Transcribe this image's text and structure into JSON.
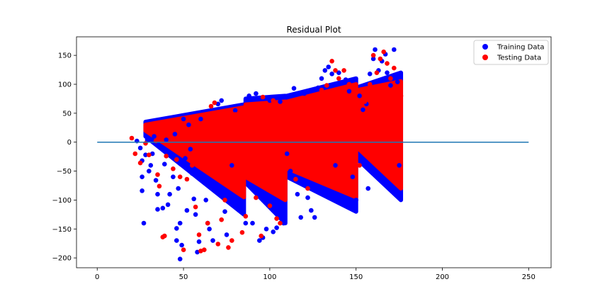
{
  "chart_data": {
    "type": "scatter",
    "title": "Residual Plot",
    "xlabel": "",
    "ylabel": "",
    "xlim": [
      -12,
      263
    ],
    "ylim": [
      -217,
      182
    ],
    "x_ticks": [
      0,
      50,
      100,
      150,
      200,
      250
    ],
    "y_ticks": [
      -200,
      -150,
      -100,
      -50,
      0,
      50,
      100,
      150
    ],
    "grid": false,
    "legend_position": "top-right",
    "reference_line": {
      "y": 0,
      "x_start": 0,
      "x_end": 250,
      "color": "#1f77b4"
    },
    "series": [
      {
        "name": "Training Data",
        "color": "#0000ff",
        "points": [
          [
            23,
            2
          ],
          [
            25,
            -10
          ],
          [
            26,
            -32
          ],
          [
            26,
            -60
          ],
          [
            26,
            -84
          ],
          [
            27,
            -140
          ],
          [
            28,
            -22
          ],
          [
            29,
            4
          ],
          [
            30,
            -50
          ],
          [
            31,
            -40
          ],
          [
            32,
            -20
          ],
          [
            33,
            10
          ],
          [
            34,
            -66
          ],
          [
            35,
            -90
          ],
          [
            35,
            -116
          ],
          [
            36,
            -8
          ],
          [
            38,
            -114
          ],
          [
            39,
            -38
          ],
          [
            40,
            4
          ],
          [
            41,
            -108
          ],
          [
            42,
            -90
          ],
          [
            43,
            -20
          ],
          [
            44,
            -60
          ],
          [
            45,
            14
          ],
          [
            46,
            -149
          ],
          [
            46,
            -170
          ],
          [
            47,
            -80
          ],
          [
            48,
            -140
          ],
          [
            48,
            -202
          ],
          [
            49,
            -178
          ],
          [
            50,
            40
          ],
          [
            51,
            -28
          ],
          [
            52,
            -118
          ],
          [
            53,
            30
          ],
          [
            54,
            -12
          ],
          [
            55,
            -54
          ],
          [
            56,
            -98
          ],
          [
            57,
            -125
          ],
          [
            58,
            -190
          ],
          [
            59,
            -172
          ],
          [
            60,
            40
          ],
          [
            62,
            -60
          ],
          [
            63,
            -100
          ],
          [
            64,
            -140
          ],
          [
            65,
            -150
          ],
          [
            67,
            -170
          ],
          [
            70,
            66
          ],
          [
            72,
            72
          ],
          [
            74,
            -120
          ],
          [
            75,
            -160
          ],
          [
            78,
            -40
          ],
          [
            80,
            55
          ],
          [
            82,
            -110
          ],
          [
            86,
            -140
          ],
          [
            88,
            80
          ],
          [
            90,
            -140
          ],
          [
            92,
            84
          ],
          [
            94,
            -170
          ],
          [
            96,
            -165
          ],
          [
            98,
            -150
          ],
          [
            100,
            72
          ],
          [
            102,
            -155
          ],
          [
            104,
            -148
          ],
          [
            106,
            70
          ],
          [
            108,
            -140
          ],
          [
            110,
            -20
          ],
          [
            112,
            -50
          ],
          [
            114,
            93
          ],
          [
            116,
            -90
          ],
          [
            118,
            -130
          ],
          [
            120,
            84
          ],
          [
            122,
            -96
          ],
          [
            124,
            -118
          ],
          [
            126,
            -130
          ],
          [
            128,
            94
          ],
          [
            130,
            110
          ],
          [
            132,
            124
          ],
          [
            134,
            130
          ],
          [
            136,
            118
          ],
          [
            138,
            -40
          ],
          [
            140,
            120
          ],
          [
            142,
            -100
          ],
          [
            144,
            108
          ],
          [
            146,
            88
          ],
          [
            148,
            -60
          ],
          [
            150,
            -100
          ],
          [
            152,
            80
          ],
          [
            154,
            56
          ],
          [
            156,
            66
          ],
          [
            157,
            -80
          ],
          [
            158,
            118
          ],
          [
            160,
            144
          ],
          [
            161,
            160
          ],
          [
            163,
            124
          ],
          [
            165,
            140
          ],
          [
            167,
            152
          ],
          [
            168,
            120
          ],
          [
            170,
            98
          ],
          [
            172,
            160
          ],
          [
            174,
            104
          ],
          [
            175,
            -40
          ]
        ]
      },
      {
        "name": "Testing Data",
        "color": "#ff0000",
        "points": [
          [
            20,
            7
          ],
          [
            22,
            -20
          ],
          [
            25,
            -36
          ],
          [
            28,
            -2
          ],
          [
            30,
            -22
          ],
          [
            34,
            2
          ],
          [
            35,
            -56
          ],
          [
            36,
            -76
          ],
          [
            38,
            -164
          ],
          [
            39,
            -162
          ],
          [
            40,
            -24
          ],
          [
            44,
            -46
          ],
          [
            46,
            -30
          ],
          [
            48,
            -60
          ],
          [
            50,
            -186
          ],
          [
            52,
            -64
          ],
          [
            55,
            -40
          ],
          [
            57,
            -112
          ],
          [
            59,
            -160
          ],
          [
            60,
            -188
          ],
          [
            62,
            -186
          ],
          [
            64,
            -140
          ],
          [
            66,
            62
          ],
          [
            67,
            32
          ],
          [
            68,
            68
          ],
          [
            70,
            -176
          ],
          [
            72,
            -134
          ],
          [
            74,
            -100
          ],
          [
            76,
            -182
          ],
          [
            78,
            -170
          ],
          [
            80,
            48
          ],
          [
            84,
            -156
          ],
          [
            86,
            -128
          ],
          [
            90,
            -40
          ],
          [
            92,
            -96
          ],
          [
            95,
            -162
          ],
          [
            96,
            78
          ],
          [
            98,
            66
          ],
          [
            100,
            -110
          ],
          [
            102,
            72
          ],
          [
            104,
            -132
          ],
          [
            106,
            -140
          ],
          [
            108,
            -70
          ],
          [
            112,
            50
          ],
          [
            115,
            -64
          ],
          [
            118,
            24
          ],
          [
            120,
            -40
          ],
          [
            122,
            -80
          ],
          [
            125,
            76
          ],
          [
            128,
            40
          ],
          [
            130,
            90
          ],
          [
            133,
            98
          ],
          [
            136,
            140
          ],
          [
            138,
            124
          ],
          [
            140,
            110
          ],
          [
            143,
            124
          ],
          [
            146,
            100
          ],
          [
            150,
            26
          ],
          [
            152,
            -40
          ],
          [
            155,
            70
          ],
          [
            158,
            100
          ],
          [
            160,
            150
          ],
          [
            162,
            120
          ],
          [
            164,
            144
          ],
          [
            166,
            156
          ],
          [
            168,
            136
          ],
          [
            170,
            110
          ],
          [
            172,
            128
          ],
          [
            174,
            95
          ],
          [
            176,
            80
          ]
        ],
        "dense_bands": [
          {
            "x_start": 28,
            "x_end": 85,
            "top_at_start": 30,
            "top_at_end": 60,
            "bottom_at_start": 20,
            "bottom_at_end": -95
          },
          {
            "x_start": 86,
            "x_end": 109,
            "top_at_start": 65,
            "top_at_end": 70,
            "bottom_at_start": -60,
            "bottom_at_end": -100
          },
          {
            "x_start": 110,
            "x_end": 150,
            "top_at_start": 70,
            "top_at_end": 100,
            "bottom_at_start": -45,
            "bottom_at_end": -95
          },
          {
            "x_start": 151,
            "x_end": 176,
            "top_at_start": 90,
            "top_at_end": 105,
            "bottom_at_start": -10,
            "bottom_at_end": -80
          }
        ]
      }
    ],
    "training_dense_bands": [
      {
        "x_start": 28,
        "x_end": 85,
        "top_at_start": 35,
        "top_at_end": 65,
        "bottom_at_start": 10,
        "bottom_at_end": -125
      },
      {
        "x_start": 86,
        "x_end": 109,
        "top_at_start": 75,
        "top_at_end": 80,
        "bottom_at_start": -70,
        "bottom_at_end": -140
      },
      {
        "x_start": 110,
        "x_end": 150,
        "top_at_start": 80,
        "top_at_end": 110,
        "bottom_at_start": -60,
        "bottom_at_end": -120
      },
      {
        "x_start": 151,
        "x_end": 176,
        "top_at_start": 95,
        "top_at_end": 120,
        "bottom_at_start": -30,
        "bottom_at_end": -100
      }
    ]
  }
}
